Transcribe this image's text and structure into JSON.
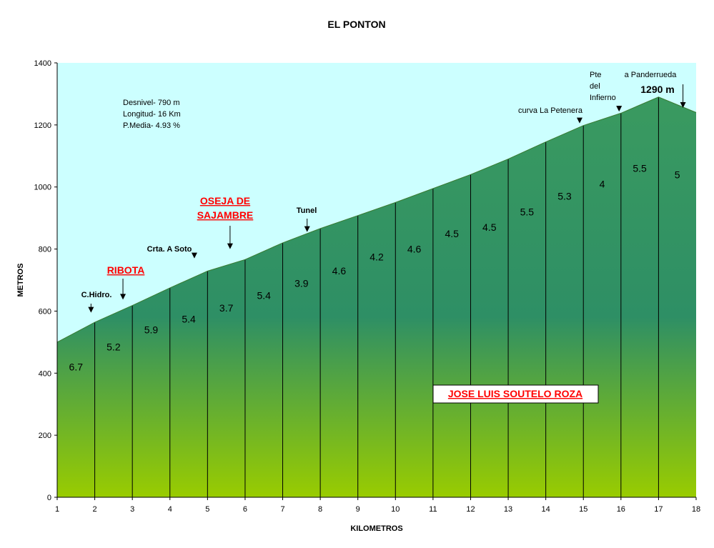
{
  "chart_data": {
    "type": "area",
    "title": "EL PONTON",
    "xlabel": "KILOMETROS",
    "ylabel": "METROS",
    "xlim": [
      1,
      18
    ],
    "ylim": [
      0,
      1400
    ],
    "x_ticks": [
      "1",
      "2",
      "3",
      "4",
      "5",
      "6",
      "7",
      "8",
      "9",
      "10",
      "11",
      "12",
      "13",
      "14",
      "15",
      "16",
      "17",
      "18"
    ],
    "y_ticks": [
      "0",
      "200",
      "400",
      "600",
      "800",
      "1000",
      "1200",
      "1400"
    ],
    "x": [
      1,
      2,
      3,
      4,
      5,
      6,
      7,
      8,
      9,
      10,
      11,
      12,
      13,
      14,
      15,
      16,
      17,
      18
    ],
    "y": [
      500,
      564,
      618,
      675,
      729,
      766,
      820,
      866,
      908,
      950,
      995,
      1040,
      1090,
      1145,
      1198,
      1238,
      1290,
      1240
    ],
    "grades": [
      "6.7",
      "5.2",
      "5.9",
      "5.4",
      "3.7",
      "5.4",
      "3.9",
      "4.6",
      "4.2",
      "4.6",
      "4.5",
      "4.5",
      "5.5",
      "5.3",
      "4",
      "5.5",
      "5"
    ],
    "grade_y": [
      420,
      485,
      540,
      575,
      610,
      650,
      690,
      730,
      775,
      800,
      850,
      870,
      920,
      970,
      1010,
      1060,
      1040
    ],
    "stats": [
      "Desnivel- 790 m",
      "Longitud- 16 Km",
      "P.Media- 4.93 %"
    ],
    "annotations": [
      {
        "id": "chidro",
        "text": "C.Hidro.",
        "km": 1.9,
        "alt": 595,
        "style": "bold-small",
        "arrow": true
      },
      {
        "id": "ribota",
        "text": "RIBOTA",
        "km": 2.75,
        "alt": 637,
        "style": "town",
        "arrow": true
      },
      {
        "id": "soto",
        "text": "Crta. A Soto",
        "km": 4.65,
        "alt": 770,
        "style": "bold-small",
        "arrow": true
      },
      {
        "id": "oseja",
        "lines": [
          "OSEJA DE",
          "SAJAMBRE"
        ],
        "km": 5.6,
        "alt": 800,
        "style": "town",
        "arrow": true
      },
      {
        "id": "tunel",
        "text": "Tunel",
        "km": 7.65,
        "alt": 855,
        "style": "bold-small",
        "arrow": true
      },
      {
        "id": "petenera",
        "text": "curva La Petenera",
        "km": 14.9,
        "alt": 1205,
        "style": "small",
        "arrow": true
      },
      {
        "id": "pte",
        "lines": [
          "Pte",
          "del",
          "Infierno"
        ],
        "km": 15.95,
        "alt": 1243,
        "style": "small",
        "arrow": true
      },
      {
        "id": "panderrueda",
        "text": "a Panderrueda",
        "km": 17.65,
        "alt": 1255,
        "style": "small",
        "arrow": true
      }
    ],
    "summit_label": "1290 m",
    "author": "JOSE LUIS SOUTELO ROZA",
    "sky_color": "#ccffff",
    "fill_top_color": "#3a9a60",
    "fill_mid_color": "#2e8f65",
    "fill_bottom_color": "#99cc00",
    "grid": false,
    "legend": "none"
  }
}
